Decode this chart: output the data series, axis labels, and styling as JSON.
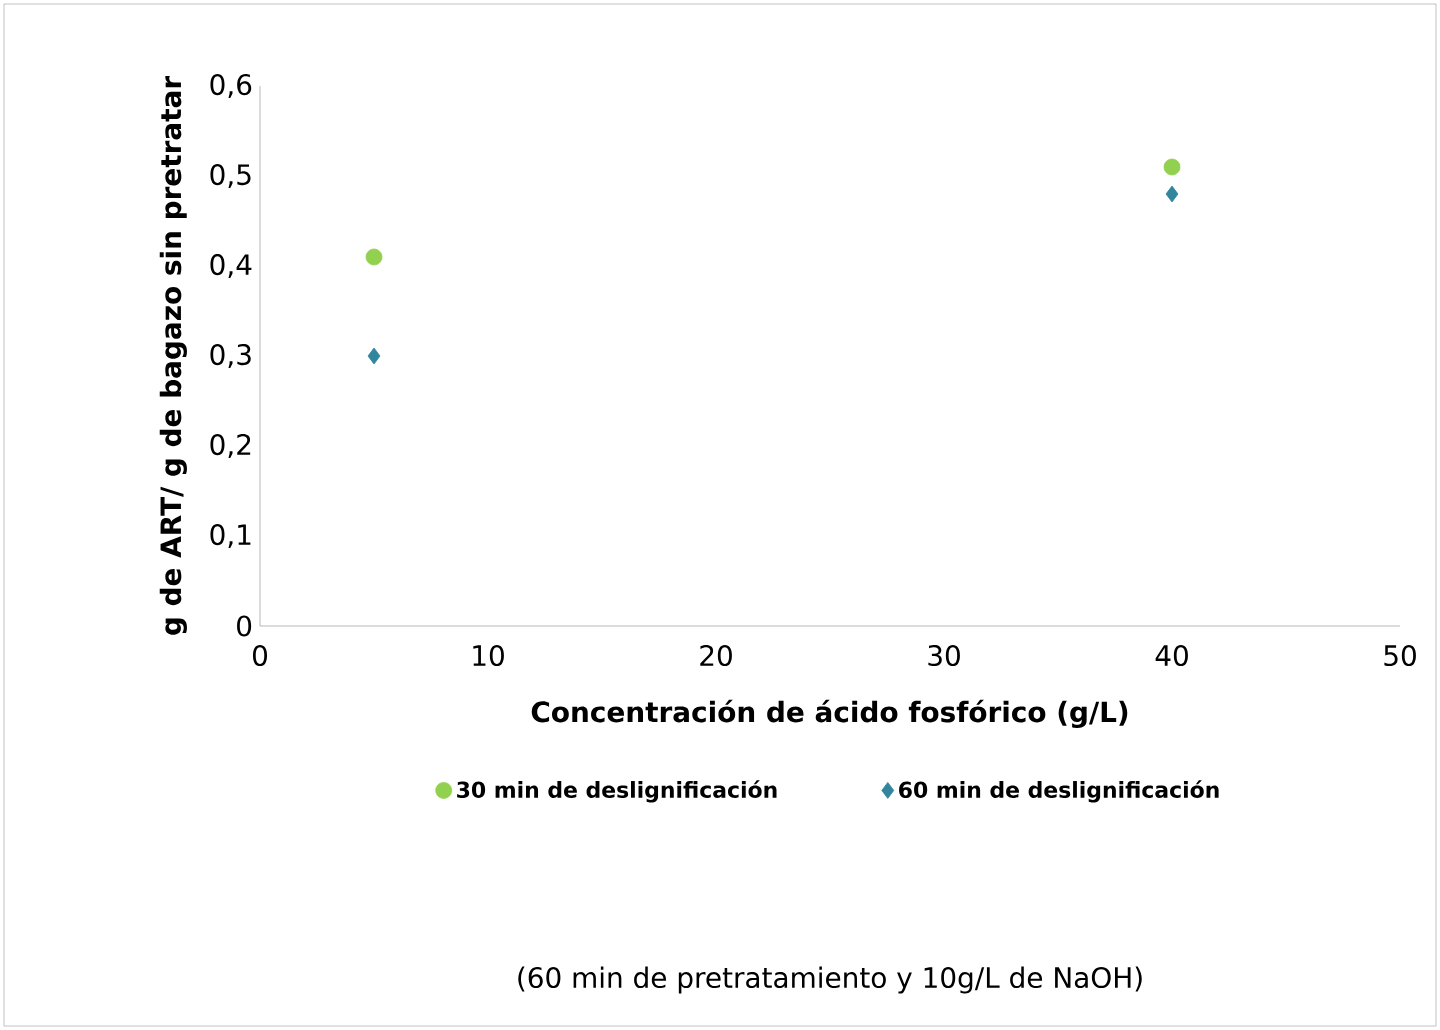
{
  "chart_data": {
    "type": "scatter",
    "xlabel": "Concentración de ácido fosfórico  (g/L)",
    "ylabel": "g de ART/ g de bagazo sin pretratar",
    "annotations": [
      "(60 min de pretratamiento y 10g/L de NaOH)"
    ],
    "x": [
      5,
      40
    ],
    "series": [
      {
        "name": "30 min de deslignificación",
        "color": "#92d050",
        "marker": "circle",
        "values": [
          0.41,
          0.51
        ]
      },
      {
        "name": "60 min de deslignificación",
        "color": "#31859c",
        "marker": "diamond",
        "values": [
          0.3,
          0.48
        ]
      }
    ],
    "xlim": [
      0,
      50
    ],
    "xticks": [
      0,
      10,
      20,
      30,
      40,
      50
    ],
    "ylim": [
      0,
      0.6
    ],
    "yticks": [
      {
        "value": 0,
        "label": "0"
      },
      {
        "value": 0.1,
        "label": "0,1"
      },
      {
        "value": 0.2,
        "label": "0,2"
      },
      {
        "value": 0.3,
        "label": "0,3"
      },
      {
        "value": 0.4,
        "label": "0,4"
      },
      {
        "value": 0.5,
        "label": "0,5"
      },
      {
        "value": 0.6,
        "label": "0,6"
      }
    ],
    "grid": false,
    "legend": "bottom"
  }
}
